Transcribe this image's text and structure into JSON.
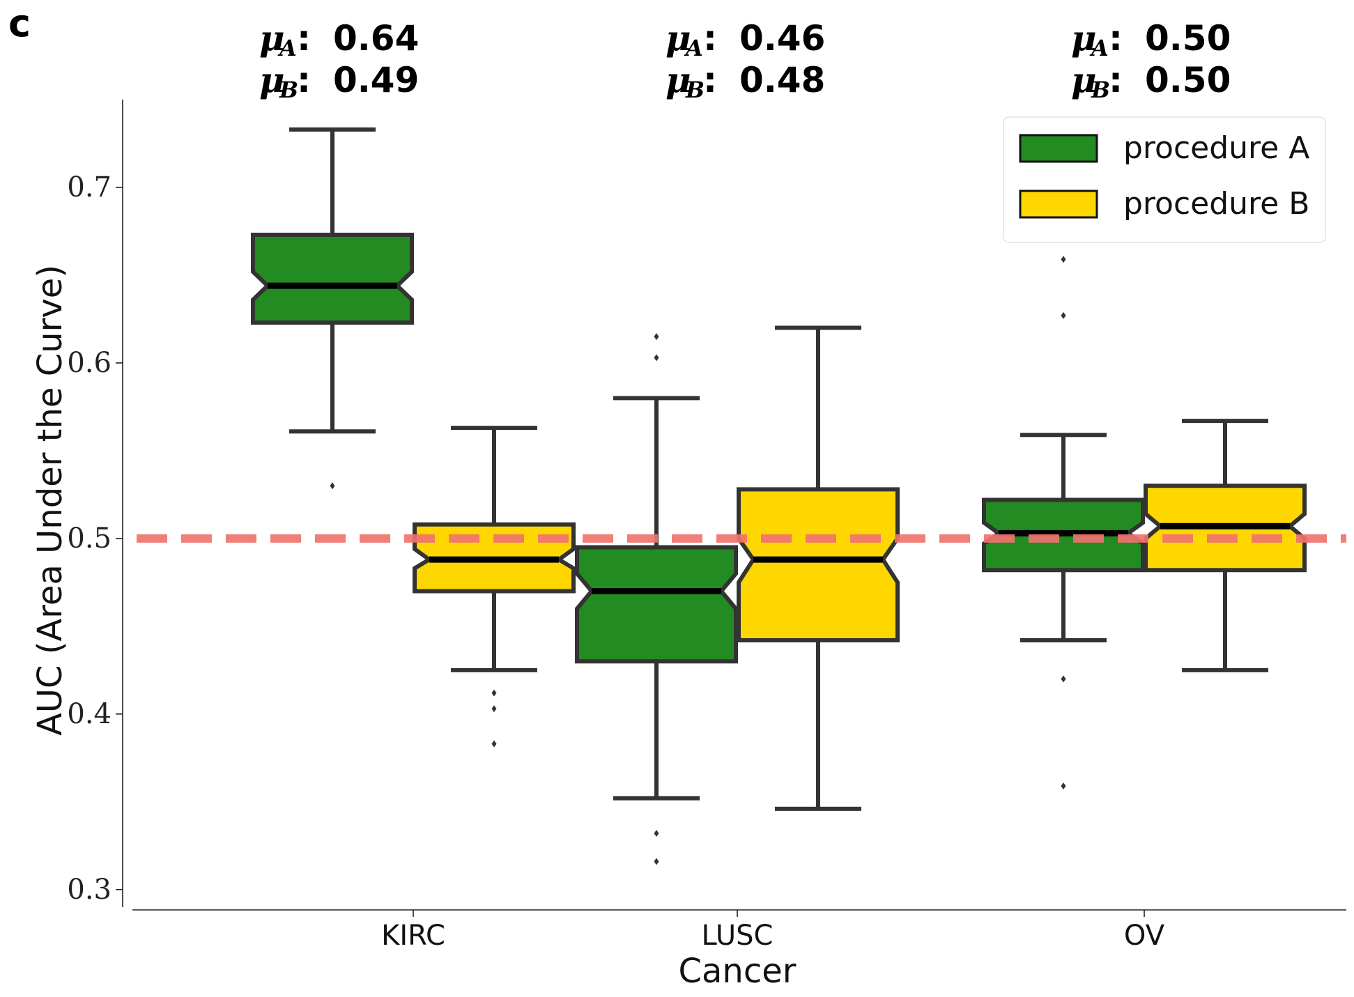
{
  "panel_label": "c",
  "chart_data": {
    "type": "boxplot",
    "xlabel": "Cancer",
    "ylabel": "AUC (Area Under the Curve)",
    "ylim": [
      0.29,
      0.75
    ],
    "yticks": [
      0.3,
      0.4,
      0.5,
      0.6,
      0.7
    ],
    "ytick_labels": [
      "0.3",
      "0.4",
      "0.5",
      "0.6",
      "0.7"
    ],
    "categories": [
      "KIRC",
      "LUSC",
      "OV"
    ],
    "reference_line": {
      "y": 0.5,
      "color": "#f0746e",
      "style": "dashed"
    },
    "legend": {
      "placement": "top-right"
    },
    "series": [
      {
        "name": "procedure A",
        "color": "#228b22",
        "boxes": [
          {
            "whisker_low": 0.561,
            "q1": 0.623,
            "notch_low": 0.636,
            "median": 0.644,
            "notch_high": 0.652,
            "q3": 0.673,
            "whisker_high": 0.733,
            "outliers": [
              0.53
            ]
          },
          {
            "whisker_low": 0.352,
            "q1": 0.43,
            "notch_low": 0.46,
            "median": 0.47,
            "notch_high": 0.48,
            "q3": 0.495,
            "whisker_high": 0.58,
            "outliers": [
              0.615,
              0.603,
              0.332,
              0.316
            ]
          },
          {
            "whisker_low": 0.442,
            "q1": 0.482,
            "notch_low": 0.497,
            "median": 0.503,
            "notch_high": 0.509,
            "q3": 0.522,
            "whisker_high": 0.559,
            "outliers": [
              0.659,
              0.627,
              0.42,
              0.359
            ]
          }
        ]
      },
      {
        "name": "procedure B",
        "color": "#ffd700",
        "boxes": [
          {
            "whisker_low": 0.425,
            "q1": 0.47,
            "notch_low": 0.483,
            "median": 0.488,
            "notch_high": 0.494,
            "q3": 0.508,
            "whisker_high": 0.563,
            "outliers": [
              0.412,
              0.403,
              0.383
            ]
          },
          {
            "whisker_low": 0.346,
            "q1": 0.442,
            "notch_low": 0.475,
            "median": 0.488,
            "notch_high": 0.5,
            "q3": 0.528,
            "whisker_high": 0.62,
            "outliers": []
          },
          {
            "whisker_low": 0.425,
            "q1": 0.482,
            "notch_low": 0.5,
            "median": 0.507,
            "notch_high": 0.514,
            "q3": 0.53,
            "whisker_high": 0.567,
            "outliers": []
          }
        ]
      }
    ],
    "annotations": [
      {
        "category": "KIRC",
        "mu_a": "0.64",
        "mu_b": "0.49"
      },
      {
        "category": "LUSC",
        "mu_a": "0.46",
        "mu_b": "0.48"
      },
      {
        "category": "OV",
        "mu_a": "0.50",
        "mu_b": "0.50"
      }
    ],
    "mu_symbol": "μ",
    "mu_a_sub": "A",
    "mu_b_sub": "B"
  }
}
